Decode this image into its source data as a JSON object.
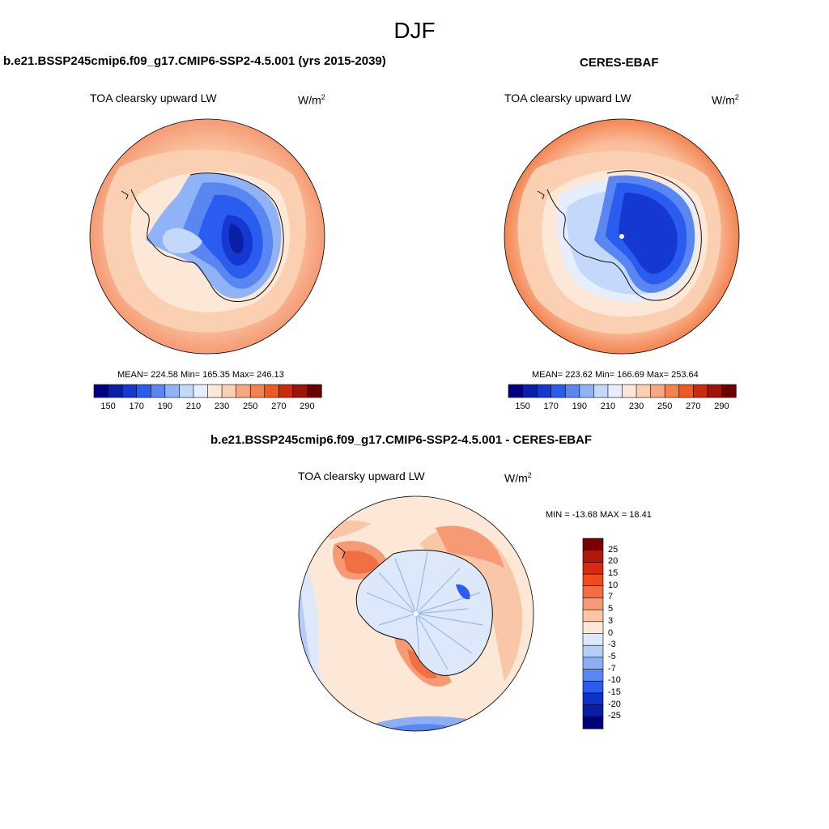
{
  "title": "DJF",
  "panels": {
    "model": {
      "title": "b.e21.BSSP245cmip6.f09_g17.CMIP6-SSP2-4.5.001 (yrs 2015-2039)",
      "variable": "TOA clearsky upward LW",
      "units_base": "W/m",
      "units_exp": "2",
      "stats": "MEAN= 224.58  Min= 165.35  Max= 246.13",
      "colorbar_ticks": [
        "150",
        "170",
        "190",
        "210",
        "230",
        "250",
        "270",
        "290"
      ]
    },
    "obs": {
      "title": "CERES-EBAF",
      "variable": "TOA clearsky upward LW",
      "units_base": "W/m",
      "units_exp": "2",
      "stats": "MEAN= 223.62  Min= 166.69  Max= 253.64",
      "colorbar_ticks": [
        "150",
        "170",
        "190",
        "210",
        "230",
        "250",
        "270",
        "290"
      ]
    },
    "diff": {
      "title": "b.e21.BSSP245cmip6.f09_g17.CMIP6-SSP2-4.5.001 - CERES-EBAF",
      "variable": "TOA clearsky upward LW",
      "units_base": "W/m",
      "units_exp": "2",
      "stats": "MIN = -13.68 MAX =  18.41",
      "colorbar_ticks": [
        "25",
        "20",
        "15",
        "10",
        "7",
        "5",
        "3",
        "0",
        "-3",
        "-5",
        "-7",
        "-10",
        "-15",
        "-20",
        "-25"
      ]
    }
  },
  "colors": {
    "abs_scale": [
      "#00007f",
      "#0a1fa6",
      "#1538d0",
      "#2a5cf0",
      "#5a86f2",
      "#90b2f7",
      "#c4d8fb",
      "#e6eefc",
      "#fde8d8",
      "#fbcfb2",
      "#f6a883",
      "#f3824f",
      "#ef5a24",
      "#cc2a0d",
      "#9d1408",
      "#6b0000"
    ],
    "diff_scale": [
      "#7a0000",
      "#b0190a",
      "#d82a10",
      "#f04a20",
      "#f26e43",
      "#f59a74",
      "#f9c6a7",
      "#fde7d6",
      "#dde8fb",
      "#b7cdf6",
      "#8eaef3",
      "#5a86f2",
      "#2a5cf0",
      "#0e32c8",
      "#081e9e",
      "#00007a"
    ]
  }
}
